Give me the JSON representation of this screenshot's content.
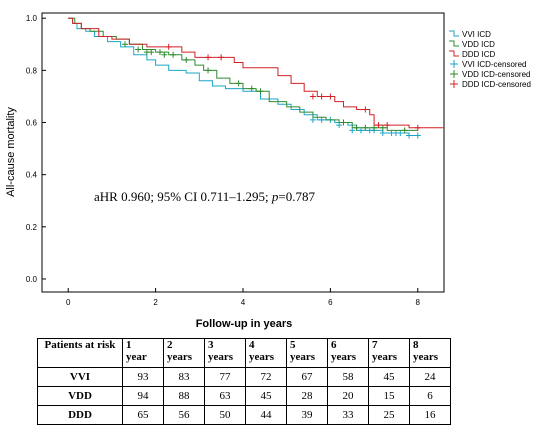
{
  "chart_data": {
    "type": "line",
    "subtype": "kaplan-meier",
    "ylabel": "All-cause mortality",
    "xlabel": "Follow-up in years",
    "xlim": [
      -0.6,
      8.6
    ],
    "ylim": [
      -0.05,
      1.02
    ],
    "x_ticks": [
      "0",
      "2",
      "4",
      "6",
      "8"
    ],
    "x_tick_values": [
      0,
      2,
      4,
      6,
      8
    ],
    "y_ticks": [
      "0.0",
      "0.2",
      "0.4",
      "0.6",
      "0.8",
      "1.0"
    ],
    "y_tick_values": [
      0,
      0.2,
      0.4,
      0.6,
      0.8,
      1.0
    ],
    "annotation": "aHR 0.960; 95% CI 0.711–1.295; p=0.787",
    "legend_position": "top-right",
    "legend": [
      "VVI ICD",
      "VDD ICD",
      "DDD ICD",
      "VVI ICD-censored",
      "VDD ICD-censored",
      "DDD ICD-censored"
    ],
    "series": [
      {
        "name": "VVI ICD",
        "color": "#1ba6c9",
        "steps": [
          [
            0,
            1.0
          ],
          [
            0.1,
            0.98
          ],
          [
            0.2,
            0.96
          ],
          [
            0.4,
            0.95
          ],
          [
            0.6,
            0.93
          ],
          [
            0.9,
            0.91
          ],
          [
            1.2,
            0.89
          ],
          [
            1.5,
            0.86
          ],
          [
            1.8,
            0.84
          ],
          [
            2.0,
            0.82
          ],
          [
            2.3,
            0.8
          ],
          [
            2.7,
            0.79
          ],
          [
            3.0,
            0.76
          ],
          [
            3.3,
            0.74
          ],
          [
            3.6,
            0.73
          ],
          [
            4.0,
            0.72
          ],
          [
            4.4,
            0.69
          ],
          [
            4.8,
            0.67
          ],
          [
            5.1,
            0.65
          ],
          [
            5.4,
            0.63
          ],
          [
            5.7,
            0.61
          ],
          [
            6.1,
            0.6
          ],
          [
            6.4,
            0.59
          ],
          [
            6.6,
            0.57
          ],
          [
            6.9,
            0.57
          ],
          [
            7.2,
            0.56
          ],
          [
            7.5,
            0.56
          ],
          [
            7.8,
            0.55
          ],
          [
            8.0,
            0.55
          ]
        ],
        "censored": [
          [
            5.6,
            0.61
          ],
          [
            5.8,
            0.61
          ],
          [
            6.0,
            0.61
          ],
          [
            6.2,
            0.59
          ],
          [
            6.5,
            0.57
          ],
          [
            6.7,
            0.57
          ],
          [
            6.9,
            0.57
          ],
          [
            7.0,
            0.57
          ],
          [
            7.2,
            0.56
          ],
          [
            7.4,
            0.56
          ],
          [
            7.5,
            0.56
          ],
          [
            7.6,
            0.56
          ],
          [
            7.8,
            0.55
          ],
          [
            8.0,
            0.55
          ]
        ]
      },
      {
        "name": "VDD ICD",
        "color": "#2e8b2e",
        "steps": [
          [
            0,
            1.0
          ],
          [
            0.15,
            0.98
          ],
          [
            0.3,
            0.96
          ],
          [
            0.5,
            0.95
          ],
          [
            0.8,
            0.93
          ],
          [
            1.1,
            0.92
          ],
          [
            1.4,
            0.9
          ],
          [
            1.7,
            0.88
          ],
          [
            2.0,
            0.87
          ],
          [
            2.3,
            0.86
          ],
          [
            2.6,
            0.84
          ],
          [
            2.9,
            0.82
          ],
          [
            3.1,
            0.8
          ],
          [
            3.4,
            0.77
          ],
          [
            3.7,
            0.75
          ],
          [
            4.0,
            0.73
          ],
          [
            4.3,
            0.72
          ],
          [
            4.6,
            0.68
          ],
          [
            5.0,
            0.66
          ],
          [
            5.3,
            0.64
          ],
          [
            5.6,
            0.62
          ],
          [
            5.9,
            0.61
          ],
          [
            6.2,
            0.6
          ],
          [
            6.5,
            0.58
          ],
          [
            6.9,
            0.58
          ],
          [
            7.3,
            0.57
          ],
          [
            7.6,
            0.57
          ],
          [
            8.0,
            0.57
          ]
        ],
        "censored": [
          [
            1.3,
            0.9
          ],
          [
            1.6,
            0.88
          ],
          [
            1.8,
            0.87
          ],
          [
            1.9,
            0.87
          ],
          [
            2.1,
            0.87
          ],
          [
            2.2,
            0.86
          ],
          [
            2.4,
            0.86
          ],
          [
            2.7,
            0.84
          ],
          [
            3.2,
            0.8
          ],
          [
            3.9,
            0.75
          ],
          [
            4.2,
            0.73
          ],
          [
            4.4,
            0.72
          ],
          [
            6.3,
            0.6
          ],
          [
            6.6,
            0.58
          ],
          [
            6.8,
            0.58
          ],
          [
            7.0,
            0.58
          ],
          [
            7.2,
            0.58
          ],
          [
            7.7,
            0.57
          ]
        ]
      },
      {
        "name": "DDD ICD",
        "color": "#d42027",
        "steps": [
          [
            0,
            1.0
          ],
          [
            0.1,
            0.98
          ],
          [
            0.3,
            0.96
          ],
          [
            0.7,
            0.93
          ],
          [
            1.0,
            0.92
          ],
          [
            1.4,
            0.9
          ],
          [
            1.8,
            0.89
          ],
          [
            2.2,
            0.89
          ],
          [
            2.6,
            0.87
          ],
          [
            2.9,
            0.85
          ],
          [
            3.4,
            0.85
          ],
          [
            3.8,
            0.83
          ],
          [
            4.0,
            0.81
          ],
          [
            4.5,
            0.81
          ],
          [
            4.8,
            0.78
          ],
          [
            5.1,
            0.75
          ],
          [
            5.4,
            0.72
          ],
          [
            5.7,
            0.7
          ],
          [
            6.1,
            0.68
          ],
          [
            6.3,
            0.66
          ],
          [
            6.6,
            0.65
          ],
          [
            6.9,
            0.63
          ],
          [
            7.0,
            0.59
          ],
          [
            7.5,
            0.59
          ],
          [
            7.8,
            0.58
          ],
          [
            8.6,
            0.58
          ]
        ],
        "censored": [
          [
            2.3,
            0.89
          ],
          [
            3.2,
            0.85
          ],
          [
            3.5,
            0.85
          ],
          [
            5.6,
            0.7
          ],
          [
            5.8,
            0.7
          ],
          [
            6.0,
            0.7
          ],
          [
            6.8,
            0.65
          ],
          [
            7.1,
            0.59
          ],
          [
            7.3,
            0.59
          ],
          [
            8.0,
            0.58
          ]
        ]
      }
    ]
  },
  "risk_table": {
    "header_label": "Patients at risk",
    "years": [
      {
        "num": "1",
        "unit": "year"
      },
      {
        "num": "2",
        "unit": "years"
      },
      {
        "num": "3",
        "unit": "years"
      },
      {
        "num": "4",
        "unit": "years"
      },
      {
        "num": "5",
        "unit": "years"
      },
      {
        "num": "6",
        "unit": "years"
      },
      {
        "num": "7",
        "unit": "years"
      },
      {
        "num": "8",
        "unit": "years"
      }
    ],
    "rows": [
      {
        "label": "VVI",
        "values": [
          "93",
          "83",
          "77",
          "72",
          "67",
          "58",
          "45",
          "24"
        ]
      },
      {
        "label": "VDD",
        "values": [
          "94",
          "88",
          "63",
          "45",
          "28",
          "20",
          "15",
          "6"
        ]
      },
      {
        "label": "DDD",
        "values": [
          "65",
          "56",
          "50",
          "44",
          "39",
          "33",
          "25",
          "16"
        ]
      }
    ]
  }
}
